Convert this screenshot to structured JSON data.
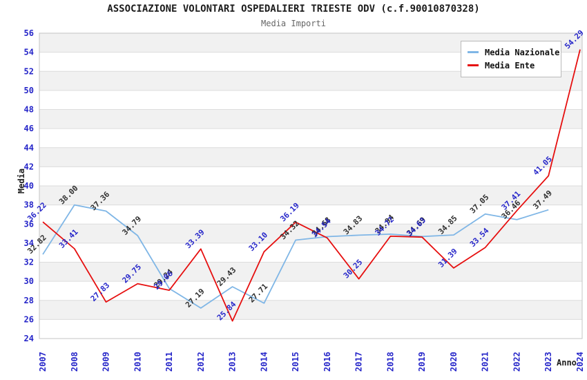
{
  "title": "ASSOCIAZIONE VOLONTARI OSPEDALIERI TRIESTE ODV (c.f.90010870328)",
  "subtitle": "Media Importi",
  "axis": {
    "y_label": "Media",
    "x_label": "Anno"
  },
  "legend": {
    "nazionale": "Media Nazionale",
    "ente": "Media Ente"
  },
  "colors": {
    "tick_text": "#2626c9",
    "band": "#f1f1f1",
    "grid": "#dcdcdc",
    "border": "#c4c4c4",
    "title": "#1c1c1c",
    "subtitle": "#666666",
    "nazionale_line": "#7fb6e6",
    "ente_line": "#e60f0f",
    "nazionale_label": "#303030",
    "ente_label": "#2626c9"
  },
  "chart_data": {
    "type": "line",
    "title": "ASSOCIAZIONE VOLONTARI OSPEDALIERI TRIESTE ODV (c.f.90010870328)",
    "subtitle": "Media Importi",
    "xlabel": "Anno",
    "ylabel": "Media",
    "ylim": [
      24,
      56
    ],
    "ytick_step": 2,
    "grid": true,
    "legend_position": "top-right",
    "x": [
      "2007",
      "2008",
      "2009",
      "2010",
      "2011",
      "2012",
      "2013",
      "2014",
      "2015",
      "2016",
      "2017",
      "2018",
      "2019",
      "2020",
      "2021",
      "2022",
      "2023",
      "2024"
    ],
    "series": [
      {
        "name": "Media Nazionale",
        "key": "nazionale",
        "color": "#7fb6e6",
        "label_color": "#303030",
        "values": [
          32.82,
          38.0,
          37.36,
          34.79,
          29.24,
          27.19,
          29.43,
          27.71,
          34.32,
          34.68,
          34.83,
          34.94,
          34.69,
          34.85,
          37.05,
          36.46,
          37.49,
          null
        ]
      },
      {
        "name": "Media Ente",
        "key": "ente",
        "color": "#e60f0f",
        "label_color": "#2626c9",
        "values": [
          36.22,
          33.41,
          27.83,
          29.75,
          29.06,
          33.39,
          25.84,
          33.1,
          36.19,
          34.54,
          30.25,
          34.72,
          34.63,
          31.39,
          33.54,
          37.41,
          41.05,
          54.29
        ]
      }
    ]
  }
}
